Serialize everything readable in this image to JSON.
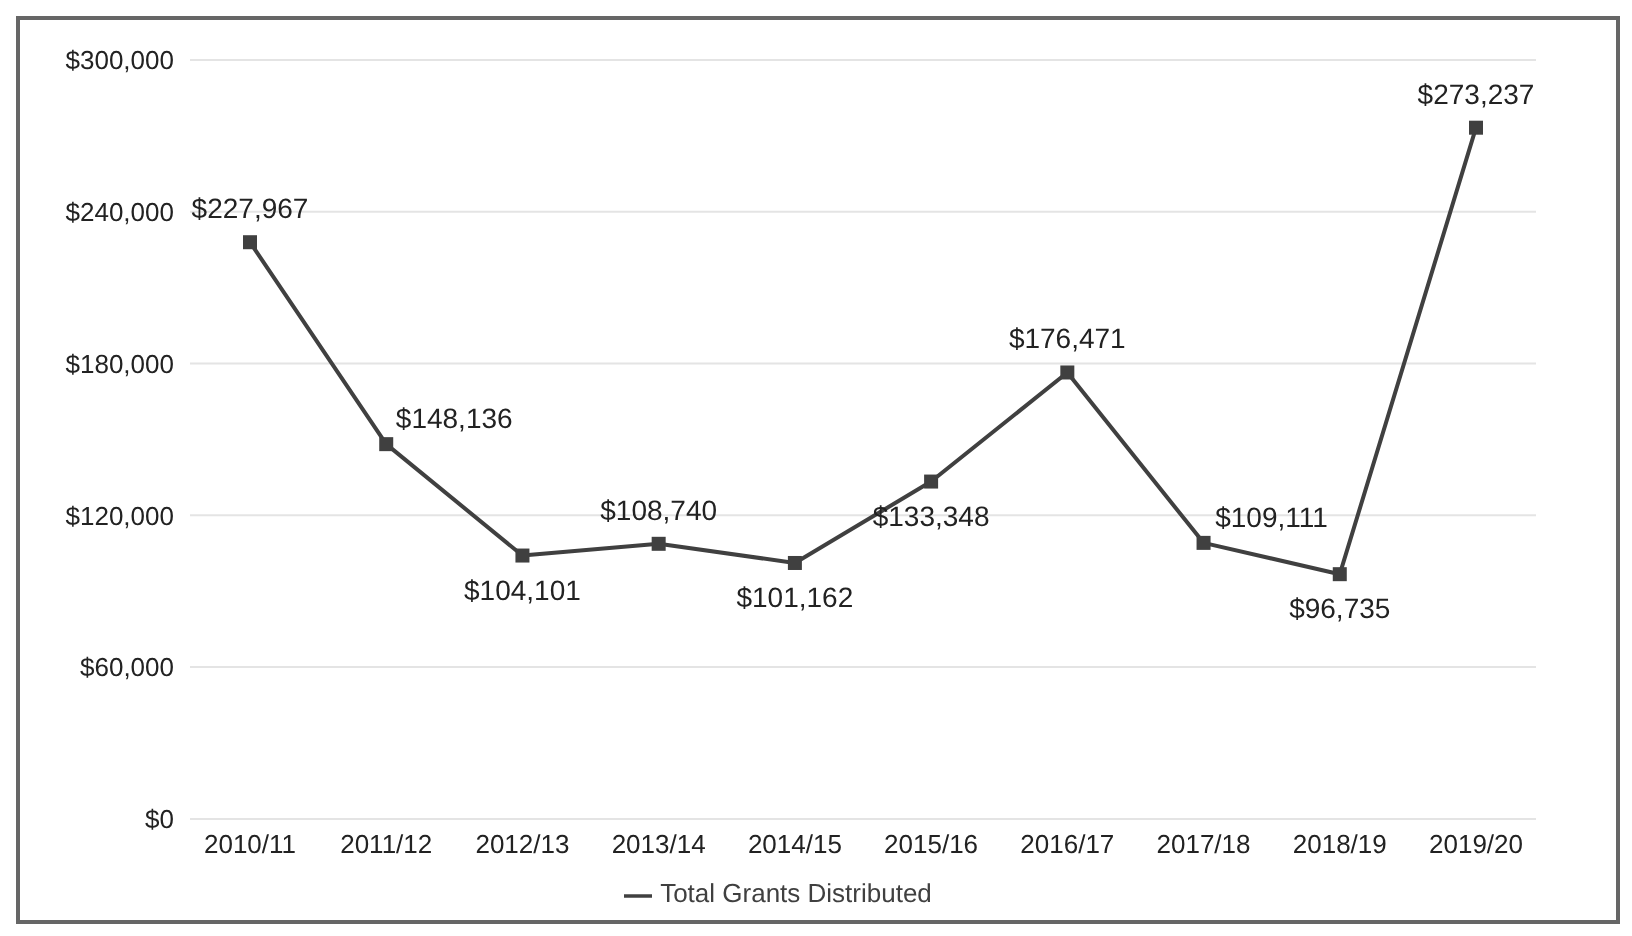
{
  "chart_data": {
    "type": "line",
    "categories": [
      "2010/11",
      "2011/12",
      "2012/13",
      "2013/14",
      "2014/15",
      "2015/16",
      "2016/17",
      "2017/18",
      "2018/19",
      "2019/20"
    ],
    "series": [
      {
        "name": "Total Grants Distributed",
        "color": "#404040",
        "values": [
          227967,
          148136,
          104101,
          108740,
          101162,
          133348,
          176471,
          109111,
          96735,
          273237
        ],
        "value_labels": [
          "$227,967",
          "$148,136",
          "$104,101",
          "$108,740",
          "$101,162",
          "$133,348",
          "$176,471",
          "$109,111",
          "$96,735",
          "$273,237"
        ]
      }
    ],
    "ylim": [
      0,
      300000
    ],
    "yticks": [
      {
        "value": 0,
        "label": "$0"
      },
      {
        "value": 60000,
        "label": "$60,000"
      },
      {
        "value": 120000,
        "label": "$120,000"
      },
      {
        "value": 180000,
        "label": "$180,000"
      },
      {
        "value": 240000,
        "label": "$240,000"
      },
      {
        "value": 300000,
        "label": "$300,000"
      }
    ],
    "grid": "y",
    "legend": "bottom",
    "marker": "square",
    "line_style": "solid"
  }
}
